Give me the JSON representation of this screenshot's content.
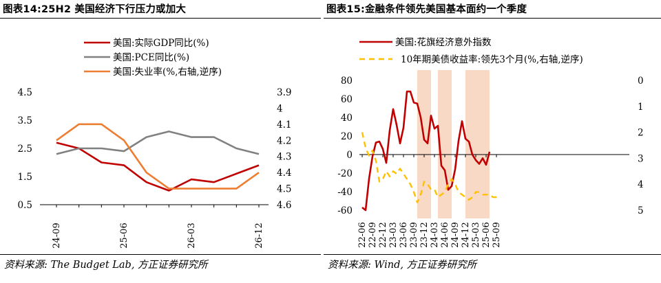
{
  "left": {
    "title": "图表14:25H2 美国经济下行压力或加大",
    "source": "资料来源: The Budget Lab, 方正证券研究所",
    "chart_data": {
      "type": "line",
      "x": [
        "24-09",
        "24-12",
        "25-03",
        "25-06",
        "25-09",
        "25-12",
        "26-03",
        "26-06",
        "26-09",
        "26-12"
      ],
      "x_tick_labels": [
        "24-09",
        "25-06",
        "26-03",
        "26-12"
      ],
      "ylim_left": [
        0.5,
        4.5
      ],
      "yticks_left": [
        "0.5",
        "1.5",
        "2.5",
        "3.5",
        "4.5"
      ],
      "ylim_right": [
        3.9,
        4.6
      ],
      "yticks_right": [
        "3.9",
        "4",
        "4.1",
        "4.2",
        "4.3",
        "4.4",
        "4.5",
        "4.6"
      ],
      "right_axis_inverted": true,
      "series": [
        {
          "name": "美国:实际GDP同比(%)",
          "axis": "left",
          "color": "#c00000",
          "values": [
            2.7,
            2.5,
            2.0,
            1.9,
            1.3,
            1.0,
            1.4,
            1.3,
            1.6,
            1.9
          ]
        },
        {
          "name": "美国:PCE同比(%)",
          "axis": "left",
          "color": "#808080",
          "values": [
            2.3,
            2.5,
            2.5,
            2.4,
            2.9,
            3.1,
            2.9,
            2.9,
            2.5,
            2.3
          ]
        },
        {
          "name": "美国:失业率(%,右轴,逆序)",
          "axis": "right",
          "color": "#ed7d31",
          "values": [
            4.2,
            4.1,
            4.1,
            4.2,
            4.4,
            4.5,
            4.5,
            4.5,
            4.5,
            4.4
          ]
        }
      ],
      "legend": "top-left",
      "grid": false
    }
  },
  "right": {
    "title": "图表15:金融条件领先美国基本面约一个季度",
    "source": "资料来源: Wind, 方正证券研究所",
    "chart_data": {
      "type": "line",
      "x_tick_labels": [
        "22-06",
        "22-09",
        "22-12",
        "23-03",
        "23-06",
        "23-09",
        "23-12",
        "24-03",
        "24-06",
        "24-09",
        "24-12",
        "25-03",
        "25-06",
        "25-09"
      ],
      "ylim_left": [
        -60,
        80
      ],
      "yticks_left": [
        "-60",
        "-40",
        "-20",
        "0",
        "20",
        "40",
        "60",
        "80"
      ],
      "ylim_right": [
        0,
        5
      ],
      "yticks_right": [
        "0",
        "1",
        "2",
        "3",
        "4",
        "5"
      ],
      "right_axis_inverted": true,
      "shaded_periods": [
        [
          "23-10",
          "24-02"
        ],
        [
          "24-04",
          "24-08"
        ],
        [
          "24-12",
          "25-07"
        ]
      ],
      "shade_color": "#f8d9c6",
      "series": [
        {
          "name": "美国:花旗经济意外指数",
          "axis": "left",
          "color": "#c00000",
          "dates": [
            "22-06",
            "22-07",
            "22-08",
            "22-09",
            "22-10",
            "22-11",
            "22-12",
            "23-01",
            "23-02",
            "23-03",
            "23-04",
            "23-05",
            "23-06",
            "23-07",
            "23-08",
            "23-09",
            "23-10",
            "23-11",
            "23-12",
            "24-01",
            "24-02",
            "24-03",
            "24-04",
            "24-05",
            "24-06",
            "24-07",
            "24-08",
            "24-09",
            "24-10",
            "24-11",
            "24-12",
            "25-01",
            "25-02",
            "25-03",
            "25-04",
            "25-05",
            "25-06",
            "25-07"
          ],
          "values": [
            -57,
            -60,
            -26,
            -2,
            13,
            14,
            6,
            -9,
            26,
            49,
            32,
            12,
            29,
            68,
            68,
            56,
            55,
            40,
            16,
            12,
            42,
            28,
            31,
            -12,
            -17,
            -38,
            -34,
            -16,
            15,
            36,
            17,
            14,
            0,
            -6,
            -10,
            -4,
            -11,
            3
          ]
        },
        {
          "name": "10年期美债收益率:领先3个月(%,右轴,逆序)",
          "axis": "right",
          "color": "#ffc000",
          "dashed": true,
          "dates": [
            "22-06",
            "22-07",
            "22-08",
            "22-09",
            "22-10",
            "22-11",
            "22-12",
            "23-01",
            "23-02",
            "23-03",
            "23-04",
            "23-05",
            "23-06",
            "23-07",
            "23-08",
            "23-09",
            "23-10",
            "23-11",
            "23-12",
            "24-01",
            "24-02",
            "24-03",
            "24-04",
            "24-05",
            "24-06",
            "24-07",
            "24-08",
            "24-09",
            "24-10",
            "24-11",
            "24-12",
            "25-01",
            "25-02",
            "25-03",
            "25-04",
            "25-05",
            "25-06",
            "25-07",
            "25-08",
            "25-09",
            "25-10"
          ],
          "values": [
            2.0,
            2.6,
            2.9,
            2.7,
            3.1,
            3.9,
            3.8,
            3.5,
            3.7,
            3.5,
            3.6,
            3.4,
            3.6,
            3.8,
            4.0,
            4.3,
            4.7,
            4.4,
            3.9,
            4.0,
            4.2,
            4.2,
            4.5,
            4.4,
            4.3,
            4.0,
            3.8,
            4.0,
            4.3,
            4.4,
            4.5,
            4.6,
            4.5,
            4.3,
            4.3,
            4.4,
            4.4,
            4.4,
            4.5,
            4.5,
            4.5
          ]
        }
      ],
      "legend": "top-left",
      "grid": false
    }
  }
}
